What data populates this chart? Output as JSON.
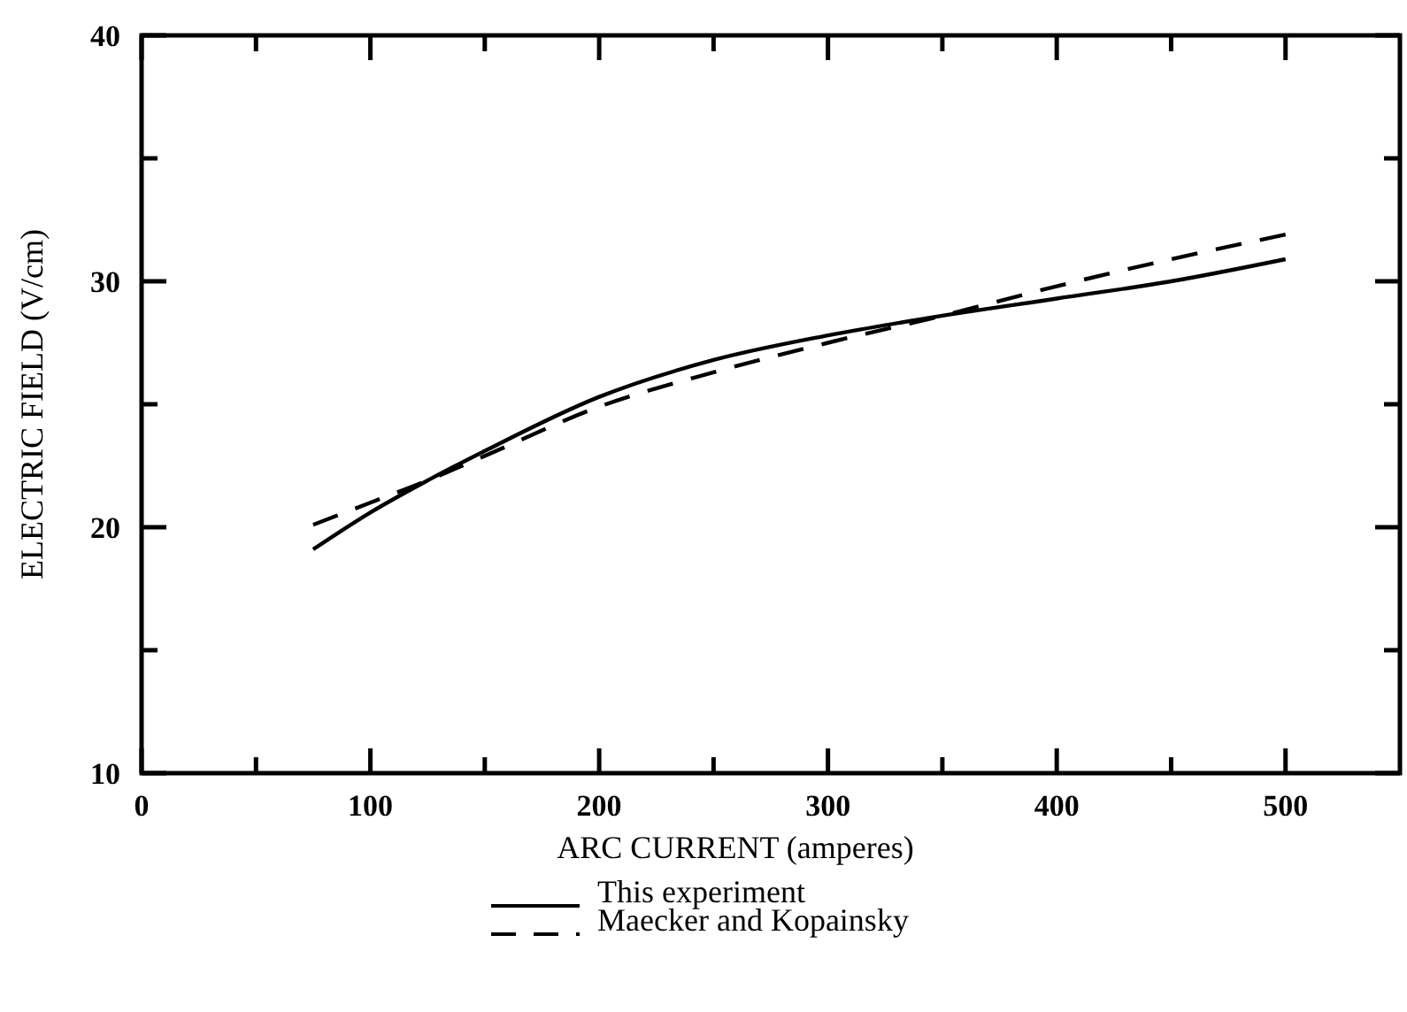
{
  "chart_data": {
    "type": "line",
    "xlabel": "ARC CURRENT (amperes)",
    "ylabel": "ELECTRIC FIELD (V/cm)",
    "xlim": [
      0,
      550
    ],
    "xticks": [
      0,
      {
        "value": 50,
        "label": null
      },
      100,
      {
        "value": 150,
        "label": null
      },
      200,
      {
        "value": 250,
        "label": null
      },
      300,
      {
        "value": 350,
        "label": null
      },
      400,
      {
        "value": 450,
        "label": null
      },
      500
    ],
    "ylim": [
      10,
      40
    ],
    "yticks": [
      10,
      {
        "value": 15,
        "label": null
      },
      20,
      {
        "value": 25,
        "label": null
      },
      30,
      {
        "value": 35,
        "label": null
      },
      40
    ],
    "legend": "bottom",
    "grid": false,
    "series": [
      {
        "name": "This experiment",
        "color": "#000000",
        "line_style": "solid",
        "x": [
          75,
          100,
          125,
          150,
          200,
          250,
          300,
          350,
          400,
          450,
          500
        ],
        "values": [
          19.1,
          20.6,
          21.9,
          23.1,
          25.3,
          26.8,
          27.8,
          28.6,
          29.3,
          30.0,
          30.9
        ]
      },
      {
        "name": "Maecker and Kopainsky",
        "color": "#000000",
        "line_style": "dashed",
        "x": [
          75,
          100,
          125,
          150,
          200,
          250,
          300,
          350,
          400,
          450,
          500
        ],
        "values": [
          20.1,
          21.0,
          21.9,
          22.9,
          24.9,
          26.3,
          27.5,
          28.6,
          29.8,
          30.9,
          31.9
        ]
      }
    ]
  }
}
